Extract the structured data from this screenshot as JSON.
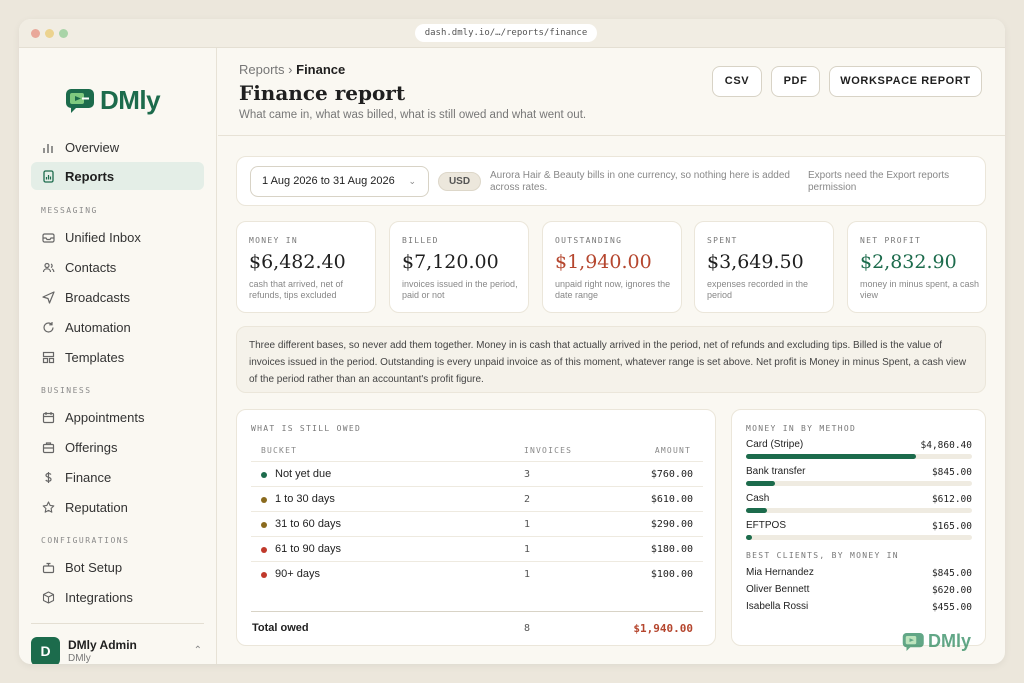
{
  "browser": {
    "url": "dash.dmly.io/…/reports/finance"
  },
  "brand": {
    "name": "DMly",
    "color": "#1c6b4c"
  },
  "sidebar": {
    "items": [
      {
        "label": "Overview",
        "icon": "bar-chart-icon"
      },
      {
        "label": "Reports",
        "icon": "report-icon",
        "active": true
      }
    ],
    "sections": [
      {
        "label": "MESSAGING",
        "items": [
          {
            "label": "Unified Inbox",
            "icon": "inbox-icon"
          },
          {
            "label": "Contacts",
            "icon": "users-icon"
          },
          {
            "label": "Broadcasts",
            "icon": "send-icon"
          },
          {
            "label": "Automation",
            "icon": "refresh-icon"
          },
          {
            "label": "Templates",
            "icon": "template-icon"
          }
        ]
      },
      {
        "label": "BUSINESS",
        "items": [
          {
            "label": "Appointments",
            "icon": "calendar-icon"
          },
          {
            "label": "Offerings",
            "icon": "briefcase-icon"
          },
          {
            "label": "Finance",
            "icon": "dollar-icon"
          },
          {
            "label": "Reputation",
            "icon": "star-icon"
          }
        ]
      },
      {
        "label": "CONFIGURATIONS",
        "items": [
          {
            "label": "Bot Setup",
            "icon": "bot-icon"
          },
          {
            "label": "Integrations",
            "icon": "box-icon"
          }
        ]
      }
    ],
    "user": {
      "initial": "D",
      "name": "DMly Admin",
      "org": "DMly"
    }
  },
  "header": {
    "breadcrumb_parent": "Reports",
    "breadcrumb_sep": "›",
    "breadcrumb_current": "Finance",
    "title": "Finance report",
    "subtitle": "What came in, what was billed, what is still owed and what went out.",
    "buttons": {
      "csv": "CSV",
      "pdf": "PDF",
      "workspace": "WORKSPACE REPORT"
    }
  },
  "filters": {
    "date_range": "1 Aug 2026 to 31 Aug 2026",
    "currency": "USD",
    "currency_note": "Aurora Hair & Beauty bills in one currency, so nothing here is added across rates.",
    "export_note": "Exports need the Export reports permission"
  },
  "stats": [
    {
      "label": "MONEY IN",
      "value": "$6,482.40",
      "note": "cash that arrived, net of refunds, tips excluded",
      "tone": "default"
    },
    {
      "label": "BILLED",
      "value": "$7,120.00",
      "note": "invoices issued in the period, paid or not",
      "tone": "default"
    },
    {
      "label": "OUTSTANDING",
      "value": "$1,940.00",
      "note": "unpaid right now, ignores the date range",
      "tone": "red"
    },
    {
      "label": "SPENT",
      "value": "$3,649.50",
      "note": "expenses recorded in the period",
      "tone": "default"
    },
    {
      "label": "NET PROFIT",
      "value": "$2,832.90",
      "note": "money in minus spent, a cash view",
      "tone": "green"
    }
  ],
  "explainer": "Three different bases, so never add them together. Money in is cash that actually arrived in the period, net of refunds and excluding tips. Billed is the value of invoices issued in the period. Outstanding is every unpaid invoice as of this moment, whatever range is set above. Net profit is Money in minus Spent, a cash view of the period rather than an accountant's profit figure.",
  "owed": {
    "title": "WHAT IS STILL OWED",
    "columns": {
      "bucket": "BUCKET",
      "invoices": "INVOICES",
      "amount": "AMOUNT"
    },
    "rows": [
      {
        "bucket": "Not yet due",
        "invoices": "3",
        "amount": "$760.00",
        "color": "#1c6b4c"
      },
      {
        "bucket": "1 to 30 days",
        "invoices": "2",
        "amount": "$610.00",
        "color": "#8a6a1e"
      },
      {
        "bucket": "31 to 60 days",
        "invoices": "1",
        "amount": "$290.00",
        "color": "#8a6a1e"
      },
      {
        "bucket": "61 to 90 days",
        "invoices": "1",
        "amount": "$180.00",
        "color": "#c0392b"
      },
      {
        "bucket": "90+ days",
        "invoices": "1",
        "amount": "$100.00",
        "color": "#c0392b"
      }
    ],
    "total": {
      "label": "Total owed",
      "invoices": "8",
      "amount": "$1,940.00"
    }
  },
  "money_by_method": {
    "title": "MONEY IN BY METHOD",
    "methods": [
      {
        "name": "Card (Stripe)",
        "amount": "$4,860.40",
        "share": 0.75
      },
      {
        "name": "Bank transfer",
        "amount": "$845.00",
        "share": 0.13
      },
      {
        "name": "Cash",
        "amount": "$612.00",
        "share": 0.094
      },
      {
        "name": "EFTPOS",
        "amount": "$165.00",
        "share": 0.025
      }
    ],
    "clients_title": "BEST CLIENTS, BY MONEY IN",
    "clients": [
      {
        "name": "Mia Hernandez",
        "amount": "$845.00"
      },
      {
        "name": "Oliver Bennett",
        "amount": "$620.00"
      },
      {
        "name": "Isabella Rossi",
        "amount": "$455.00"
      }
    ]
  }
}
